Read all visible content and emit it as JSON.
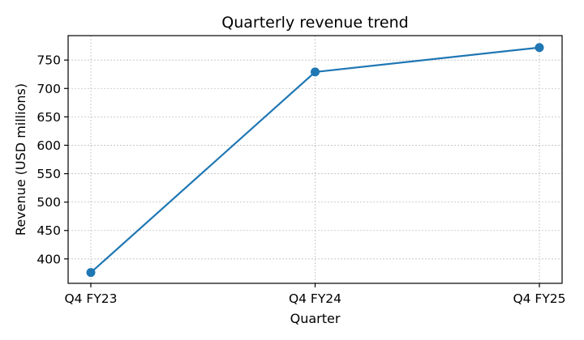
{
  "chart_data": {
    "type": "line",
    "title": "Quarterly revenue trend",
    "xlabel": "Quarter",
    "ylabel": "Revenue (USD millions)",
    "categories": [
      "Q4 FY23",
      "Q4 FY24",
      "Q4 FY25"
    ],
    "series": [
      {
        "values": [
          376,
          729,
          772
        ],
        "color": "#1f77b4"
      }
    ],
    "ylim": [
      357,
      793
    ],
    "yticks": [
      400,
      450,
      500,
      550,
      600,
      650,
      700,
      750
    ],
    "grid": true,
    "marker": "circle"
  }
}
